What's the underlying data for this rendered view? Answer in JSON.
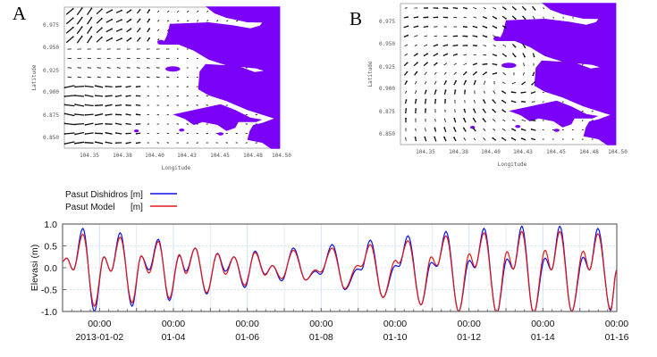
{
  "maps": [
    {
      "panel_label": "A",
      "xlabel": "Longitude",
      "ylabel": "Latitude",
      "xticks": [
        "104.35",
        "104.38",
        "104.40",
        "104.43",
        "104.45",
        "104.48",
        "104.50"
      ],
      "yticks": [
        "0.975",
        "0.950",
        "0.925",
        "0.900",
        "0.875",
        "0.850"
      ]
    },
    {
      "panel_label": "B",
      "xlabel": "Longitude",
      "ylabel": "Latitude",
      "xticks": [
        "104.35",
        "104.38",
        "104.40",
        "104.43",
        "104.45",
        "104.48",
        "104.50"
      ],
      "yticks": [
        "0.975",
        "0.950",
        "0.925",
        "0.900",
        "0.875",
        "0.850"
      ]
    }
  ],
  "colors": {
    "land": "#7a00f8",
    "observed": "#1010e0",
    "model": "#e01818",
    "grid": "#cfe3f5"
  },
  "chart_data": {
    "type": "line",
    "xlabel": "",
    "ylabel": "Elevasi (m)",
    "ylim": [
      -1.0,
      1.0
    ],
    "yticks": [
      "1.0",
      "0.5",
      "0.0",
      "-0.5",
      "-1.0"
    ],
    "ytick_values": [
      1.0,
      0.5,
      0.0,
      -0.5,
      -1.0
    ],
    "x_unit": "days since 2013-01-01 00:00",
    "xlim": [
      0,
      15
    ],
    "xticks": [
      {
        "day": 1,
        "time": "00:00",
        "date": "2013-01-02"
      },
      {
        "day": 3,
        "time": "00:00",
        "date": "01-04"
      },
      {
        "day": 5,
        "time": "00:00",
        "date": "01-06"
      },
      {
        "day": 7,
        "time": "00:00",
        "date": "01-08"
      },
      {
        "day": 9,
        "time": "00:00",
        "date": "01-10"
      },
      {
        "day": 11,
        "time": "00:00",
        "date": "01-12"
      },
      {
        "day": 13,
        "time": "00:00",
        "date": "01-14"
      },
      {
        "day": 15,
        "time": "00:00",
        "date": "01-16"
      }
    ],
    "legend": [
      {
        "name": "Pasut Dishidros",
        "unit": "[m]"
      },
      {
        "name": "Pasut Model",
        "unit": "[m]"
      }
    ],
    "x": [
      0.0,
      0.11,
      0.29,
      0.55,
      0.86,
      1.12,
      1.31,
      1.56,
      1.88,
      2.13,
      2.34,
      2.59,
      2.89,
      3.16,
      3.34,
      3.59,
      3.9,
      4.19,
      4.41,
      4.64,
      4.93,
      5.21,
      5.48,
      5.68,
      5.93,
      6.25,
      6.58,
      6.84,
      6.98,
      7.3,
      7.64,
      7.98,
      8.08,
      8.33,
      8.67,
      9.01,
      9.1,
      9.35,
      9.7,
      9.98,
      10.13,
      10.38,
      10.72,
      11.01,
      11.16,
      11.41,
      11.75,
      12.03,
      12.2,
      12.43,
      12.75,
      13.06,
      13.23,
      13.46,
      13.78,
      14.09,
      14.26,
      14.49,
      14.83,
      15.0
    ],
    "series": [
      {
        "name": "Pasut Dishidros",
        "values": [
          0.15,
          0.22,
          -0.05,
          0.9,
          -1.0,
          0.25,
          -0.08,
          0.8,
          -0.88,
          0.27,
          -0.05,
          0.65,
          -0.75,
          0.28,
          -0.08,
          0.45,
          -0.6,
          0.33,
          -0.08,
          0.25,
          -0.45,
          0.38,
          -0.15,
          0.05,
          -0.3,
          0.45,
          -0.28,
          -0.08,
          -0.15,
          0.53,
          -0.5,
          -0.03,
          -0.05,
          0.63,
          -0.68,
          0.05,
          0.03,
          0.73,
          -0.85,
          0.12,
          0.03,
          0.83,
          -1.0,
          0.17,
          0.0,
          0.9,
          -1.05,
          0.2,
          -0.03,
          0.95,
          -1.05,
          0.22,
          -0.05,
          0.95,
          -1.0,
          0.24,
          -0.05,
          0.9,
          -0.98,
          -0.05
        ]
      },
      {
        "name": "Pasut Model",
        "values": [
          0.15,
          0.22,
          -0.05,
          0.77,
          -0.88,
          0.25,
          -0.08,
          0.7,
          -0.8,
          0.27,
          -0.12,
          0.6,
          -0.7,
          0.3,
          -0.13,
          0.45,
          -0.57,
          0.32,
          -0.15,
          0.25,
          -0.4,
          0.35,
          -0.17,
          0.05,
          -0.25,
          0.4,
          -0.28,
          -0.05,
          -0.1,
          0.45,
          -0.48,
          0.05,
          0.03,
          0.53,
          -0.68,
          0.17,
          0.1,
          0.62,
          -0.85,
          0.25,
          0.05,
          0.73,
          -1.0,
          0.32,
          0.02,
          0.8,
          -1.05,
          0.37,
          -0.03,
          0.83,
          -1.05,
          0.4,
          -0.05,
          0.83,
          -1.0,
          0.38,
          -0.05,
          0.78,
          -0.95,
          -0.05
        ]
      }
    ]
  }
}
